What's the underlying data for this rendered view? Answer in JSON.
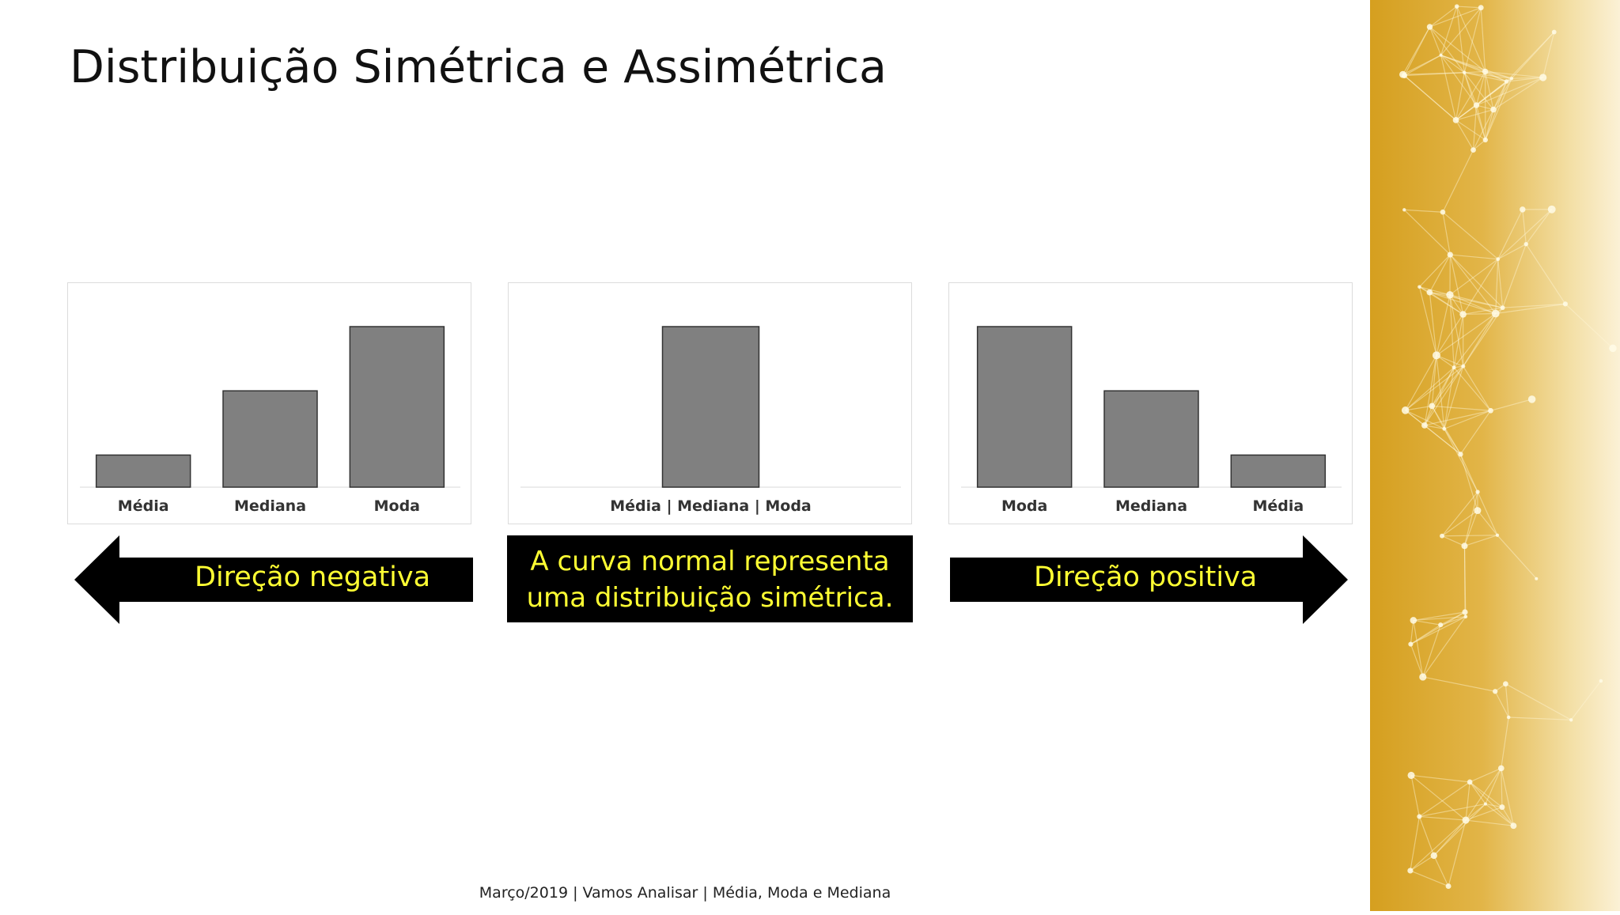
{
  "slide": {
    "title": "Distribuição Simétrica e Assimétrica",
    "footer": "Março/2019 | Vamos Analisar | Média, Moda e Mediana",
    "left_arrow_label": "Direção negativa",
    "right_arrow_label": "Direção positiva",
    "center_box": [
      "A curva normal representa",
      "uma distribuição simétrica."
    ],
    "accent_color": "#ffff33",
    "deco_color": "#d9a52a"
  },
  "chart_data": [
    {
      "type": "bar",
      "categories": [
        "Média",
        "Mediana",
        "Moda"
      ],
      "values": [
        1,
        3,
        5
      ],
      "ylim": [
        0,
        5.5
      ],
      "color": "#808080"
    },
    {
      "type": "bar",
      "categories": [
        "Média | Mediana | Moda"
      ],
      "values": [
        5
      ],
      "ylim": [
        0,
        5.5
      ],
      "color": "#808080"
    },
    {
      "type": "bar",
      "categories": [
        "Moda",
        "Mediana",
        "Média"
      ],
      "values": [
        5,
        3,
        1
      ],
      "ylim": [
        0,
        5.5
      ],
      "color": "#808080"
    }
  ]
}
